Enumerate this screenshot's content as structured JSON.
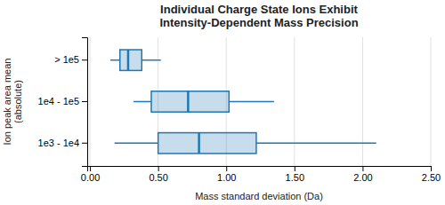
{
  "chart_data": {
    "type": "box",
    "orientation": "horizontal",
    "title": "Individual Charge State Ions Exhibit\nIntensity-Dependent Mass Precision",
    "xlabel": "Mass standard deviation (Da)",
    "ylabel": "Ion peak area mean\n(absolute)",
    "categories": [
      "> 1e5",
      "1e4 - 1e5",
      "1e3 - 1e4"
    ],
    "whislo": [
      0.15,
      0.32,
      0.18
    ],
    "q1": [
      0.22,
      0.45,
      0.5
    ],
    "med": [
      0.28,
      0.72,
      0.8
    ],
    "q3": [
      0.38,
      1.02,
      1.22
    ],
    "whishi": [
      0.52,
      1.35,
      2.1
    ],
    "xlim": [
      -0.02,
      2.5
    ],
    "xticks": [
      {
        "value": 0.0,
        "label": "0.00"
      },
      {
        "value": 0.5,
        "label": "0.50"
      },
      {
        "value": 1.0,
        "label": "1.00"
      },
      {
        "value": 1.5,
        "label": "1.50"
      },
      {
        "value": 2.0,
        "label": "2.00"
      },
      {
        "value": 2.5,
        "label": "2.50"
      }
    ],
    "grid": true
  }
}
